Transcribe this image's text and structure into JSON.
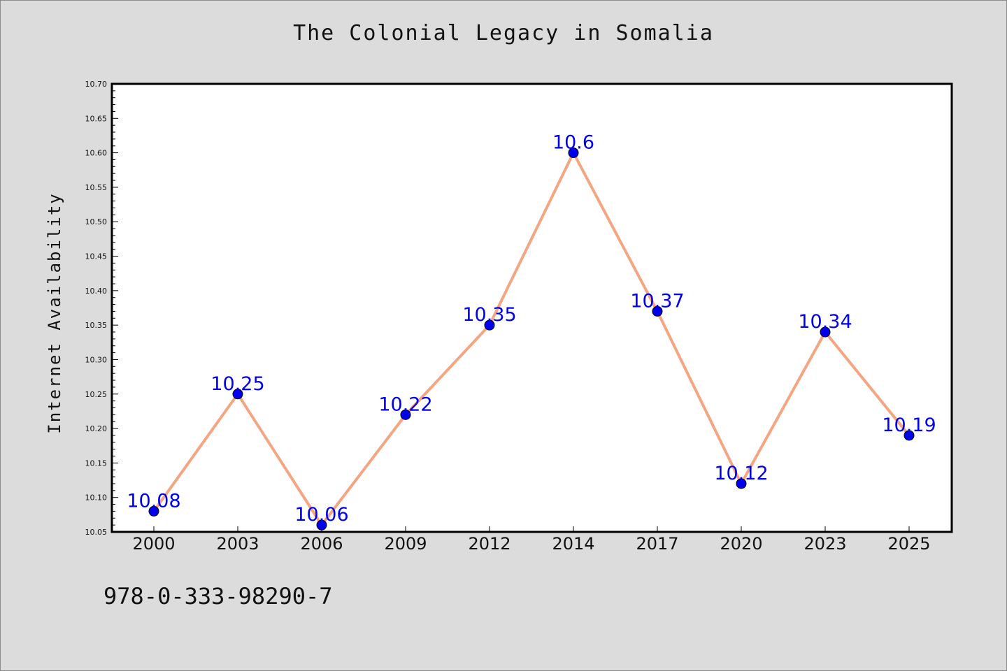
{
  "chart_data": {
    "type": "line",
    "title": "The Colonial Legacy in Somalia",
    "xlabel": "",
    "ylabel": "Internet Availability",
    "categories": [
      "2000",
      "2003",
      "2006",
      "2009",
      "2012",
      "2014",
      "2017",
      "2020",
      "2023",
      "2025"
    ],
    "series": [
      {
        "values": [
          10.08,
          10.25,
          10.06,
          10.22,
          10.35,
          10.6,
          10.37,
          10.12,
          10.34,
          10.19
        ],
        "labels": [
          "10.08",
          "10.25",
          "10.06",
          "10.22",
          "10.35",
          "10.6",
          "10.37",
          "10.12",
          "10.34",
          "10.19"
        ],
        "line_color": "#f4a582",
        "marker_color": "#0000ee"
      }
    ],
    "ylim": [
      10.05,
      10.7
    ],
    "yticks": [
      "10.05",
      "10.10",
      "10.15",
      "10.20",
      "10.25",
      "10.30",
      "10.35",
      "10.40",
      "10.45",
      "10.50",
      "10.55",
      "10.60",
      "10.65",
      "10.70"
    ],
    "grid": false
  },
  "footer": {
    "code": "978-0-333-98290-7"
  },
  "colors": {
    "background": "#dcdcdc",
    "plot_background": "#ffffff",
    "label": "#0000ee",
    "line": "#f4a582"
  }
}
